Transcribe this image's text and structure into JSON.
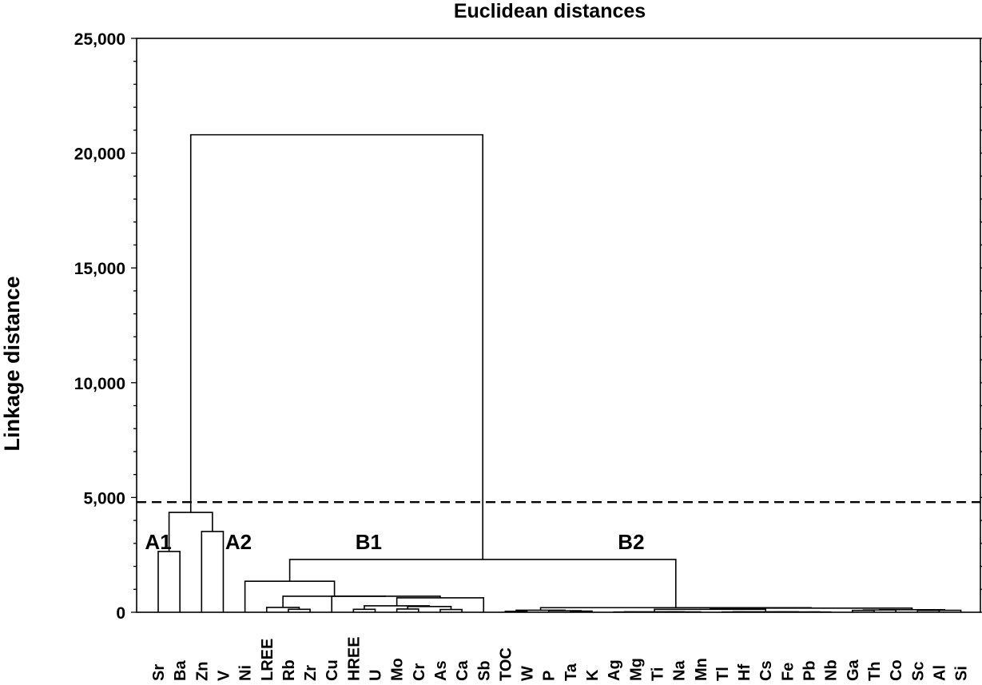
{
  "chart_data": {
    "type": "dendrogram",
    "title": "Euclidean distances",
    "ylabel": "Linkage distance",
    "xlabel": "",
    "ylim": [
      0,
      25000
    ],
    "yticks": [
      0,
      5000,
      10000,
      15000,
      20000,
      25000
    ],
    "ytick_labels": [
      "0",
      "5,000",
      "10,000",
      "15,000",
      "20,000",
      "25,000"
    ],
    "grid": false,
    "leaves": [
      "Sr",
      "Ba",
      "Zn",
      "V",
      "Ni",
      "LREE",
      "Rb",
      "Zr",
      "Cu",
      "HREE",
      "U",
      "Mo",
      "Cr",
      "As",
      "Ca",
      "Sb",
      "TOC",
      "W",
      "P",
      "Ta",
      "K",
      "Ag",
      "Mg",
      "Ti",
      "Na",
      "Mn",
      "Tl",
      "Hf",
      "Cs",
      "Fe",
      "Pb",
      "Nb",
      "Ga",
      "Th",
      "Co",
      "Sc",
      "Al",
      "Si"
    ],
    "cut_line": 4800,
    "clusters": [
      {
        "label": "A1",
        "leaf": 0.2,
        "h": 3100
      },
      {
        "label": "A2",
        "leaf": 3.9,
        "h": 3100
      },
      {
        "label": "B1",
        "leaf": 9.9,
        "h": 3100
      },
      {
        "label": "B2",
        "leaf": 22.0,
        "h": 3100
      }
    ],
    "merges": [
      {
        "id": "m_sr_ba",
        "l": "Sr",
        "r": "Ba",
        "h": 2650
      },
      {
        "id": "m_zn_v",
        "l": "Zn",
        "r": "V",
        "h": 3520
      },
      {
        "id": "m_A",
        "l": "m_sr_ba",
        "r": "m_zn_v",
        "h": 4350
      },
      {
        "id": "m_rb_zr",
        "l": "Rb",
        "r": "Zr",
        "h": 130
      },
      {
        "id": "m_rbzr_lree",
        "l": "LREE",
        "r": "m_rb_zr",
        "h": 210
      },
      {
        "id": "m_hree_u",
        "l": "HREE",
        "r": "U",
        "h": 130
      },
      {
        "id": "m_mo_cr",
        "l": "Mo",
        "r": "Cr",
        "h": 140
      },
      {
        "id": "m_as_ca",
        "l": "As",
        "r": "Ca",
        "h": 120
      },
      {
        "id": "m_mocr_asca",
        "l": "m_mo_cr",
        "r": "m_as_ca",
        "h": 250
      },
      {
        "id": "m_hu_mcac",
        "l": "m_hree_u",
        "r": "m_mocr_asca",
        "h": 280
      },
      {
        "id": "m_hu_sb",
        "l": "m_hu_mcac",
        "r": "Sb",
        "h": 630
      },
      {
        "id": "m_cu_rest",
        "l": "Cu",
        "r": "m_hu_sb",
        "h": 700
      },
      {
        "id": "m_lz_cu",
        "l": "m_rbzr_lree",
        "r": "m_cu_rest",
        "h": 700
      },
      {
        "id": "m_B1",
        "l": "Ni",
        "r": "m_lz_cu",
        "h": 1350
      },
      {
        "id": "m_toc_w",
        "l": "TOC",
        "r": "W",
        "h": 40
      },
      {
        "id": "m_ta_k",
        "l": "Ta",
        "r": "K",
        "h": 50
      },
      {
        "id": "m_p_tak",
        "l": "P",
        "r": "m_ta_k",
        "h": 70
      },
      {
        "id": "m_tw_p",
        "l": "m_toc_w",
        "r": "m_p_tak",
        "h": 90
      },
      {
        "id": "m_ag_mg",
        "l": "Ag",
        "r": "Mg",
        "h": 10
      },
      {
        "id": "m_ti_na",
        "l": "Ti",
        "r": "Na",
        "h": 10
      },
      {
        "id": "m_ti_mn",
        "l": "m_ti_na",
        "r": "Mn",
        "h": 15
      },
      {
        "id": "m_agmg_timn",
        "l": "m_ag_mg",
        "r": "m_ti_mn",
        "h": 20
      },
      {
        "id": "m_tl_hf",
        "l": "Tl",
        "r": "Hf",
        "h": 10
      },
      {
        "id": "m_cs_fe",
        "l": "Cs",
        "r": "Fe",
        "h": 10
      },
      {
        "id": "m_pb_nb",
        "l": "Pb",
        "r": "Nb",
        "h": 10
      },
      {
        "id": "m_csfe_pbnb",
        "l": "m_cs_fe",
        "r": "m_pb_nb",
        "h": 15
      },
      {
        "id": "m_tlhf_cp",
        "l": "m_tl_hf",
        "r": "m_csfe_pbnb",
        "h": 20
      },
      {
        "id": "m_ga_th",
        "l": "Ga",
        "r": "Th",
        "h": 80
      },
      {
        "id": "m_gath_co",
        "l": "m_ga_th",
        "r": "Co",
        "h": 100
      },
      {
        "id": "m_sc_al",
        "l": "Sc",
        "r": "Al",
        "h": 80
      },
      {
        "id": "m_scal_si",
        "l": "m_sc_al",
        "r": "Si",
        "h": 85
      },
      {
        "id": "m_gc_sas",
        "l": "m_gath_co",
        "r": "m_scal_si",
        "h": 110
      },
      {
        "id": "m_am_tl",
        "l": "m_agmg_timn",
        "r": "m_tlhf_cp",
        "h": 130
      },
      {
        "id": "m_amtl_gc",
        "l": "m_am_tl",
        "r": "m_gc_sas",
        "h": 180
      },
      {
        "id": "m_B2",
        "l": "m_tw_p",
        "r": "m_amtl_gc",
        "h": 200
      },
      {
        "id": "m_B",
        "l": "m_B1",
        "r": "m_B2",
        "h": 2300
      },
      {
        "id": "m_root",
        "l": "m_A",
        "r": "m_B",
        "h": 20800
      }
    ]
  }
}
